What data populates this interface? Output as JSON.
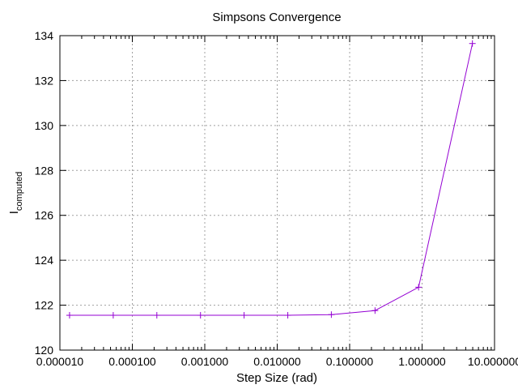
{
  "chart_data": {
    "type": "line",
    "title": "Simpsons Convergence",
    "xlabel": "Step Size (rad)",
    "ylabel_main": "I",
    "ylabel_sub": "computed",
    "x_scale": "log",
    "xlim": [
      1e-05,
      10
    ],
    "ylim": [
      120,
      134
    ],
    "grid": true,
    "x_ticks": [
      {
        "value": 1e-05,
        "label": "0.000010"
      },
      {
        "value": 0.0001,
        "label": "0.000100"
      },
      {
        "value": 0.001,
        "label": "0.001000"
      },
      {
        "value": 0.01,
        "label": "0.010000"
      },
      {
        "value": 0.1,
        "label": "0.100000"
      },
      {
        "value": 1,
        "label": "1.000000"
      },
      {
        "value": 10,
        "label": "10.000000"
      }
    ],
    "y_ticks": [
      {
        "value": 120,
        "label": "120"
      },
      {
        "value": 122,
        "label": "122"
      },
      {
        "value": 124,
        "label": "124"
      },
      {
        "value": 126,
        "label": "126"
      },
      {
        "value": 128,
        "label": "128"
      },
      {
        "value": 130,
        "label": "130"
      },
      {
        "value": 132,
        "label": "132"
      },
      {
        "value": 134,
        "label": "134"
      }
    ],
    "series": [
      {
        "color": "#9400d3",
        "marker": "plus",
        "x": [
          1.36e-05,
          5.45e-05,
          0.000218,
          0.000873,
          0.00349,
          0.014,
          0.0559,
          0.224,
          0.895,
          4.95
        ],
        "y": [
          121.55,
          121.55,
          121.55,
          121.55,
          121.55,
          121.55,
          121.58,
          121.76,
          122.8,
          133.65
        ]
      }
    ]
  }
}
